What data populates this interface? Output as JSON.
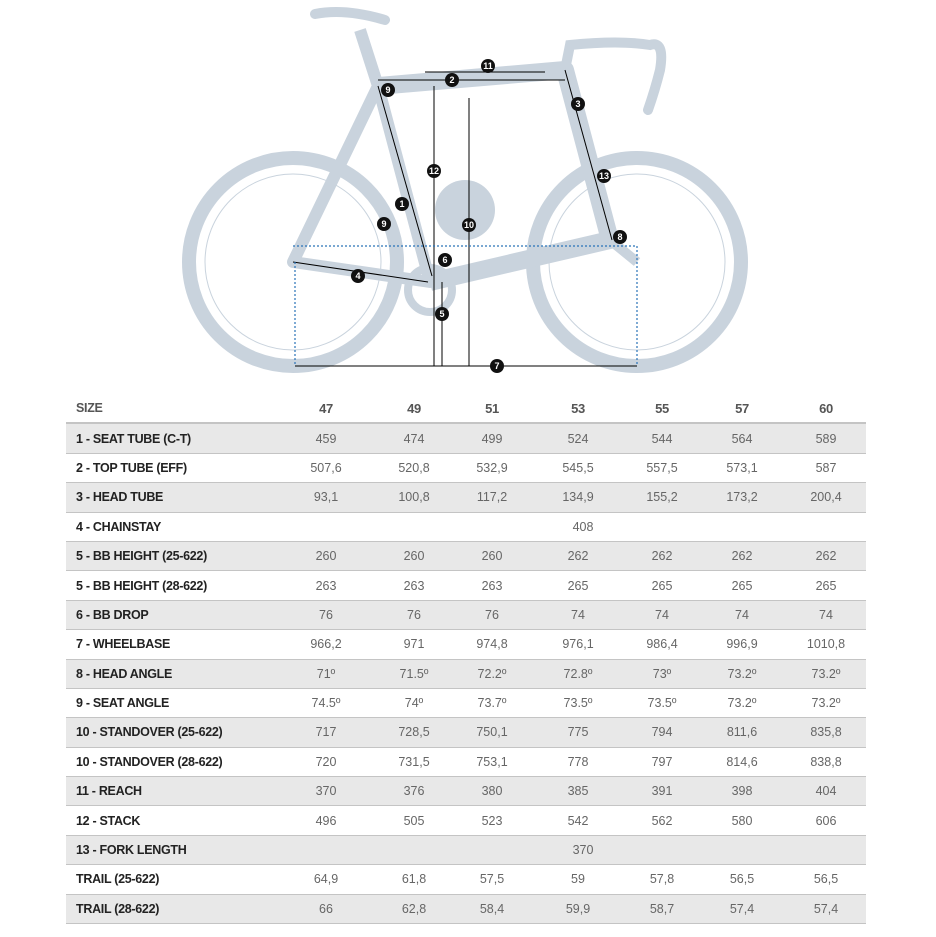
{
  "diagram": {
    "markers": [
      "1",
      "2",
      "3",
      "4",
      "5",
      "6",
      "7",
      "8",
      "9",
      "9",
      "10",
      "11",
      "12",
      "13"
    ],
    "frame_color": "#c9d3dd"
  },
  "table": {
    "header": {
      "label": "SIZE",
      "sizes": [
        "47",
        "49",
        "51",
        "53",
        "55",
        "57",
        "60"
      ]
    },
    "rows": [
      {
        "label": "1 - SEAT TUBE (C-T)",
        "values": [
          "459",
          "474",
          "499",
          "524",
          "544",
          "564",
          "589"
        ]
      },
      {
        "label": "2 - TOP TUBE (EFF)",
        "values": [
          "507,6",
          "520,8",
          "532,9",
          "545,5",
          "557,5",
          "573,1",
          "587"
        ]
      },
      {
        "label": "3 - HEAD TUBE",
        "values": [
          "93,1",
          "100,8",
          "117,2",
          "134,9",
          "155,2",
          "173,2",
          "200,4"
        ]
      },
      {
        "label": "4 - CHAINSTAY",
        "all": "408"
      },
      {
        "label": "5 - BB HEIGHT (25-622)",
        "values": [
          "260",
          "260",
          "260",
          "262",
          "262",
          "262",
          "262"
        ]
      },
      {
        "label": "5 - BB HEIGHT (28-622)",
        "values": [
          "263",
          "263",
          "263",
          "265",
          "265",
          "265",
          "265"
        ]
      },
      {
        "label": "6 - BB DROP",
        "values": [
          "76",
          "76",
          "76",
          "74",
          "74",
          "74",
          "74"
        ]
      },
      {
        "label": "7 - WHEELBASE",
        "values": [
          "966,2",
          "971",
          "974,8",
          "976,1",
          "986,4",
          "996,9",
          "1010,8"
        ]
      },
      {
        "label": "8 - HEAD ANGLE",
        "values": [
          "71º",
          "71.5º",
          "72.2º",
          "72.8º",
          "73º",
          "73.2º",
          "73.2º"
        ]
      },
      {
        "label": "9 - SEAT ANGLE",
        "values": [
          "74.5º",
          "74º",
          "73.7º",
          "73.5º",
          "73.5º",
          "73.2º",
          "73.2º"
        ]
      },
      {
        "label": "10 - STANDOVER (25-622)",
        "values": [
          "717",
          "728,5",
          "750,1",
          "775",
          "794",
          "811,6",
          "835,8"
        ]
      },
      {
        "label": "10 - STANDOVER (28-622)",
        "values": [
          "720",
          "731,5",
          "753,1",
          "778",
          "797",
          "814,6",
          "838,8"
        ]
      },
      {
        "label": "11 - REACH",
        "values": [
          "370",
          "376",
          "380",
          "385",
          "391",
          "398",
          "404"
        ]
      },
      {
        "label": "12 - STACK",
        "values": [
          "496",
          "505",
          "523",
          "542",
          "562",
          "580",
          "606"
        ]
      },
      {
        "label": "13 - FORK LENGTH",
        "all": "370"
      },
      {
        "label": "TRAIL (25-622)",
        "values": [
          "64,9",
          "61,8",
          "57,5",
          "59",
          "57,8",
          "56,5",
          "56,5"
        ]
      },
      {
        "label": "TRAIL (28-622)",
        "values": [
          "66",
          "62,8",
          "58,4",
          "59,9",
          "58,7",
          "57,4",
          "57,4"
        ]
      }
    ]
  }
}
